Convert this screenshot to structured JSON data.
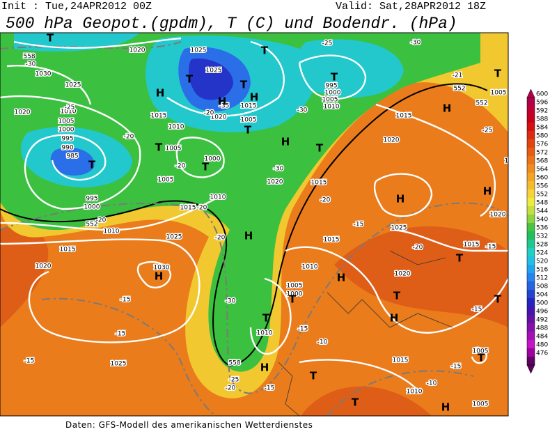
{
  "header": {
    "init": "Init : Tue,24APR2012 00Z",
    "valid": "Valid: Sat,28APR2012 18Z",
    "title": "500 hPa Geopot.(gpdm), T (C) und Bodendr. (hPa)"
  },
  "footer": {
    "source": "Daten: GFS-Modell des amerikanischen Wetterdienstes"
  },
  "colorbar": {
    "labels": [
      "600",
      "596",
      "592",
      "588",
      "584",
      "580",
      "576",
      "572",
      "568",
      "564",
      "560",
      "556",
      "552",
      "548",
      "544",
      "540",
      "536",
      "532",
      "528",
      "524",
      "520",
      "516",
      "512",
      "508",
      "504",
      "500",
      "496",
      "492",
      "488",
      "484",
      "480",
      "476"
    ],
    "colors": [
      "#b0004a",
      "#c00034",
      "#c8001c",
      "#d41010",
      "#dc2c10",
      "#e04410",
      "#e65c12",
      "#ea7418",
      "#f08c1e",
      "#f2a424",
      "#f4bc2c",
      "#f4d436",
      "#eeea40",
      "#c4e040",
      "#8cd440",
      "#48c440",
      "#20c060",
      "#20c890",
      "#20d0c4",
      "#20c0e4",
      "#20a4f0",
      "#2484f0",
      "#2464e0",
      "#2444d0",
      "#2424c0",
      "#4414b0",
      "#6410a4",
      "#8410a8",
      "#a410b4",
      "#c414c4",
      "#a000a0",
      "#600060"
    ]
  },
  "map": {
    "pressure_labels": [
      "1020",
      "1025",
      "1030",
      "1025",
      "1020",
      "1010",
      "1005",
      "1000",
      "995",
      "990",
      "985",
      "995",
      "1000",
      "1010",
      "1015",
      "1020",
      "1025",
      "1030",
      "1025",
      "1015",
      "1010",
      "1005",
      "1000",
      "1005",
      "1015",
      "1010",
      "1020",
      "1025",
      "1005",
      "1015",
      "995",
      "1000",
      "1005",
      "1010",
      "1015",
      "1020",
      "1020",
      "1015",
      "1015",
      "1010",
      "1005",
      "1000",
      "1010",
      "1025",
      "1020",
      "1015",
      "1020",
      "1020",
      "1015",
      "1010",
      "1005",
      "1005",
      "1005"
    ],
    "temperature_labels": [
      "-30",
      "-25",
      "-20",
      "-25",
      "-30",
      "-30",
      "-30",
      "-20",
      "-35",
      "-20",
      "-20",
      "-15",
      "-15",
      "-15",
      "-30",
      "-25",
      "-20",
      "-15",
      "-10",
      "-15",
      "-20",
      "-15",
      "-20",
      "-15",
      "-15",
      "-15",
      "-10",
      "-20",
      "-20",
      "-21",
      "-25"
    ],
    "geopotential_labels": [
      "558",
      "552",
      "558",
      "552",
      "552"
    ],
    "centers": [
      "T",
      "T",
      "T",
      "T",
      "T",
      "H",
      "H",
      "H",
      "T",
      "H",
      "T",
      "T",
      "T",
      "T",
      "H",
      "T",
      "H",
      "H",
      "H",
      "H",
      "T",
      "H",
      "T",
      "T",
      "H",
      "T",
      "T",
      "H",
      "T",
      "T",
      "H",
      "T"
    ]
  }
}
